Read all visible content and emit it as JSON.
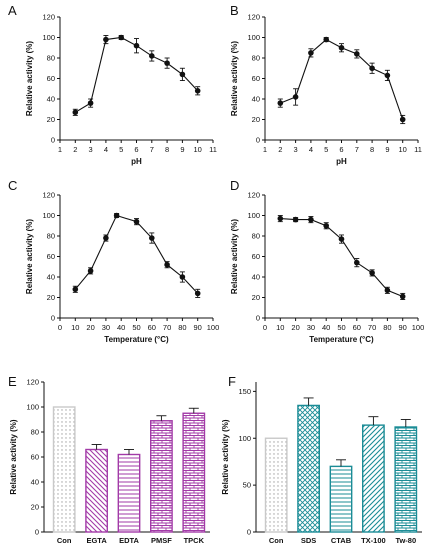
{
  "chart_data": [
    {
      "id": "A",
      "panel_label": "A",
      "type": "line",
      "markers": "filled-circle",
      "error_bars": true,
      "xlabel": "pH",
      "ylabel": "Relative activity (%)",
      "xlim": [
        1,
        11
      ],
      "ylim": [
        0,
        120
      ],
      "xticks": [
        1,
        2,
        3,
        4,
        5,
        6,
        7,
        8,
        9,
        10,
        11
      ],
      "yticks": [
        0,
        20,
        40,
        60,
        80,
        100,
        120
      ],
      "series": [
        {
          "x": [
            2,
            3,
            4,
            5,
            6,
            7,
            8,
            9,
            10
          ],
          "y": [
            27,
            36,
            98,
            100,
            92,
            82,
            75,
            64,
            48
          ],
          "err": [
            3,
            4,
            4,
            2,
            7,
            5,
            5,
            6,
            4
          ]
        }
      ]
    },
    {
      "id": "B",
      "panel_label": "B",
      "type": "line",
      "markers": "filled-circle",
      "error_bars": true,
      "xlabel": "pH",
      "ylabel": "Relative activity (%)",
      "xlim": [
        1,
        11
      ],
      "ylim": [
        0,
        120
      ],
      "xticks": [
        1,
        2,
        3,
        4,
        5,
        6,
        7,
        8,
        9,
        10,
        11
      ],
      "yticks": [
        0,
        20,
        40,
        60,
        80,
        100,
        120
      ],
      "series": [
        {
          "x": [
            2,
            3,
            4,
            5,
            6,
            7,
            8,
            9,
            10
          ],
          "y": [
            36,
            42,
            85,
            98,
            90,
            84,
            70,
            63,
            20
          ],
          "err": [
            4,
            8,
            4,
            2,
            4,
            4,
            5,
            5,
            4
          ]
        }
      ]
    },
    {
      "id": "C",
      "panel_label": "C",
      "type": "line",
      "markers": "filled-circle",
      "error_bars": true,
      "xlabel": "Temperature (°C)",
      "ylabel": "Relative activity (%)",
      "xlim": [
        0,
        100
      ],
      "ylim": [
        0,
        120
      ],
      "xticks": [
        0,
        10,
        20,
        30,
        40,
        50,
        60,
        70,
        80,
        90,
        100
      ],
      "yticks": [
        0,
        20,
        40,
        60,
        80,
        100,
        120
      ],
      "series": [
        {
          "x": [
            10,
            20,
            30,
            37,
            50,
            60,
            70,
            80,
            90
          ],
          "y": [
            28,
            46,
            78,
            100,
            94,
            78,
            52,
            40,
            24
          ],
          "err": [
            3,
            3,
            3,
            2,
            3,
            5,
            3,
            5,
            4
          ]
        }
      ]
    },
    {
      "id": "D",
      "panel_label": "D",
      "type": "line",
      "markers": "filled-circle",
      "error_bars": true,
      "xlabel": "Temperature (°C)",
      "ylabel": "Relative activity (%)",
      "xlim": [
        0,
        100
      ],
      "ylim": [
        0,
        120
      ],
      "xticks": [
        0,
        10,
        20,
        30,
        40,
        50,
        60,
        70,
        80,
        90,
        100
      ],
      "yticks": [
        0,
        20,
        40,
        60,
        80,
        100,
        120
      ],
      "series": [
        {
          "x": [
            10,
            20,
            30,
            40,
            50,
            60,
            70,
            80,
            90
          ],
          "y": [
            97,
            96,
            96,
            90,
            77,
            54,
            44,
            27,
            21
          ],
          "err": [
            3,
            2,
            3,
            3,
            4,
            4,
            3,
            3,
            3
          ]
        }
      ]
    },
    {
      "id": "E",
      "panel_label": "E",
      "type": "bar",
      "error_bars": true,
      "xlabel": "",
      "ylabel": "Relative activity (%)",
      "ylim": [
        0,
        120
      ],
      "yticks": [
        0,
        20,
        40,
        60,
        80,
        100,
        120
      ],
      "categories": [
        "Con",
        "EGTA",
        "EDTA",
        "PMSF",
        "TPCK"
      ],
      "values": [
        100,
        66,
        62,
        89,
        95
      ],
      "err": [
        0,
        4,
        4,
        4,
        4
      ],
      "colors": {
        "control": "#c9c9c9",
        "treatment": "#a23aa7"
      },
      "patterns": [
        "dots",
        "diag-down",
        "horizontal",
        "brick",
        "brick"
      ]
    },
    {
      "id": "F",
      "panel_label": "F",
      "type": "bar",
      "error_bars": true,
      "xlabel": "",
      "ylabel": "Relative activity (%)",
      "ylim": [
        0,
        160
      ],
      "yticks": [
        0,
        50,
        100,
        150
      ],
      "categories": [
        "Con",
        "SDS",
        "CTAB",
        "TX-100",
        "Tw-80"
      ],
      "values": [
        100,
        135,
        70,
        114,
        112
      ],
      "err": [
        0,
        8,
        7,
        9,
        8
      ],
      "colors": {
        "control": "#c9c9c9",
        "treatment": "#1b8c96"
      },
      "patterns": [
        "dots",
        "crosshatch",
        "horizontal",
        "diag-up",
        "brick"
      ]
    }
  ]
}
